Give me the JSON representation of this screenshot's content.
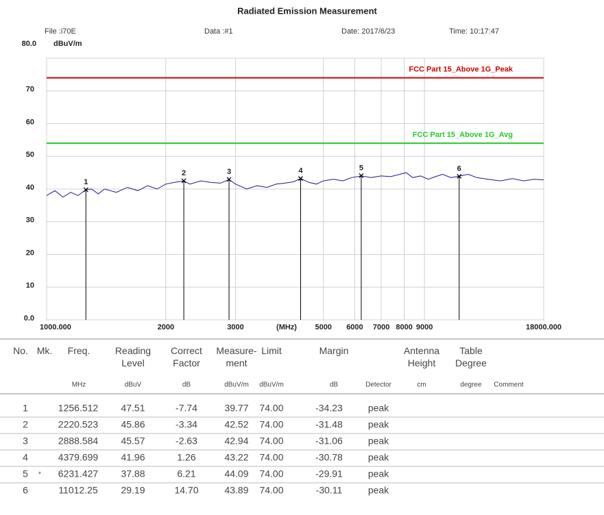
{
  "header": {
    "file": "File :i70E",
    "data": "Data :#1",
    "date": "Date: 2017/6/23",
    "time": "Time: 10:17:47"
  },
  "chart_data": {
    "type": "line",
    "title": "Radiated Emission Measurement",
    "y_label": "dBuV/m",
    "x_label": "(MHz)",
    "xscale": "log",
    "xlim": [
      1000,
      18000
    ],
    "ylim": [
      0,
      80
    ],
    "yticks": [
      {
        "value": 0,
        "label": "0.0"
      },
      10,
      20,
      30,
      40,
      50,
      60,
      70,
      {
        "value": 80,
        "label": "80.0"
      }
    ],
    "xticks": [
      {
        "value": 1000,
        "label": "1000.000"
      },
      2000,
      3000,
      5000,
      6000,
      7000,
      8000,
      9000,
      {
        "value": 18000,
        "label": "18000.000"
      }
    ],
    "grid": true,
    "limits": [
      {
        "name": "FCC Part 15_Above 1G_Peak",
        "value": 74,
        "color": "#d40000"
      },
      {
        "name": "FCC Part 15_Above 1G_Avg",
        "value": 54,
        "color": "#22cc22"
      }
    ],
    "series": [
      {
        "color": "#1a1a8c",
        "x": [
          1000,
          1050,
          1100,
          1150,
          1200,
          1256.5,
          1300,
          1350,
          1400,
          1500,
          1600,
          1700,
          1800,
          1900,
          2000,
          2100,
          2220.5,
          2300,
          2450,
          2600,
          2750,
          2888.6,
          3000,
          3200,
          3400,
          3600,
          3800,
          4000,
          4200,
          4379.7,
          4600,
          4800,
          5000,
          5300,
          5600,
          5900,
          6231.4,
          6600,
          7000,
          7400,
          7800,
          8100,
          8400,
          8800,
          9200,
          9600,
          10000,
          10500,
          11012,
          11600,
          12200,
          13000,
          14000,
          15000,
          16000,
          17000,
          18000
        ],
        "values": [
          38,
          39.5,
          37.5,
          39,
          38,
          39.8,
          40,
          38.5,
          40,
          39,
          40.5,
          39.5,
          41,
          40,
          41.5,
          42,
          42.5,
          41.5,
          42.5,
          42,
          41.8,
          42.9,
          41.5,
          40,
          41,
          40.5,
          41.5,
          41.8,
          42.2,
          43.2,
          42,
          41.5,
          42.5,
          43,
          42.5,
          43.5,
          44,
          43.5,
          44,
          43.8,
          44.5,
          45,
          43.5,
          44,
          43,
          43.8,
          44.5,
          43.5,
          43.9,
          44.5,
          43.5,
          43,
          42.5,
          43.2,
          42.5,
          43,
          42.8
        ]
      }
    ],
    "markers": {
      "labels": [
        "1",
        "2",
        "3",
        "4",
        "5",
        "6"
      ],
      "x": [
        1256.512,
        2220.523,
        2888.584,
        4379.699,
        6231.427,
        11012.25
      ],
      "values": [
        39.77,
        42.52,
        42.94,
        43.22,
        44.09,
        43.89
      ]
    }
  },
  "table": {
    "headers": [
      {
        "title": "No."
      },
      {
        "title": "Mk."
      },
      {
        "title": "Freq.",
        "unit": "MHz"
      },
      {
        "title": "Reading\nLevel",
        "unit": "dBuV"
      },
      {
        "title": "Correct\nFactor",
        "unit": "dB"
      },
      {
        "title": "Measure-\nment",
        "unit": "dBuV/m"
      },
      {
        "title": "Limit",
        "unit": "dBuV/m"
      },
      {
        "title": "Margin",
        "unit": "dB"
      },
      {
        "unit": "Detector"
      },
      {
        "title": "Antenna\nHeight",
        "unit": "cm"
      },
      {
        "title": "Table\nDegree",
        "unit": "degree"
      },
      {
        "unit": "Comment"
      }
    ],
    "rows": [
      [
        "1",
        null,
        "1256.512",
        "47.51",
        "-7.74",
        "39.77",
        "74.00",
        "-34.23",
        "peak"
      ],
      [
        "2",
        null,
        "2220.523",
        "45.86",
        "-3.34",
        "42.52",
        "74.00",
        "-31.48",
        "peak"
      ],
      [
        "3",
        null,
        "2888.584",
        "45.57",
        "-2.63",
        "42.94",
        "74.00",
        "-31.06",
        "peak"
      ],
      [
        "4",
        null,
        "4379.699",
        "41.96",
        "1.26",
        "43.22",
        "74.00",
        "-30.78",
        "peak"
      ],
      [
        "5",
        "*",
        "6231.427",
        "37.88",
        "6.21",
        "44.09",
        "74.00",
        "-29.91",
        "peak"
      ],
      [
        "6",
        null,
        "11012.25",
        "29.19",
        "14.70",
        "43.89",
        "74.00",
        "-30.11",
        "peak"
      ]
    ]
  }
}
